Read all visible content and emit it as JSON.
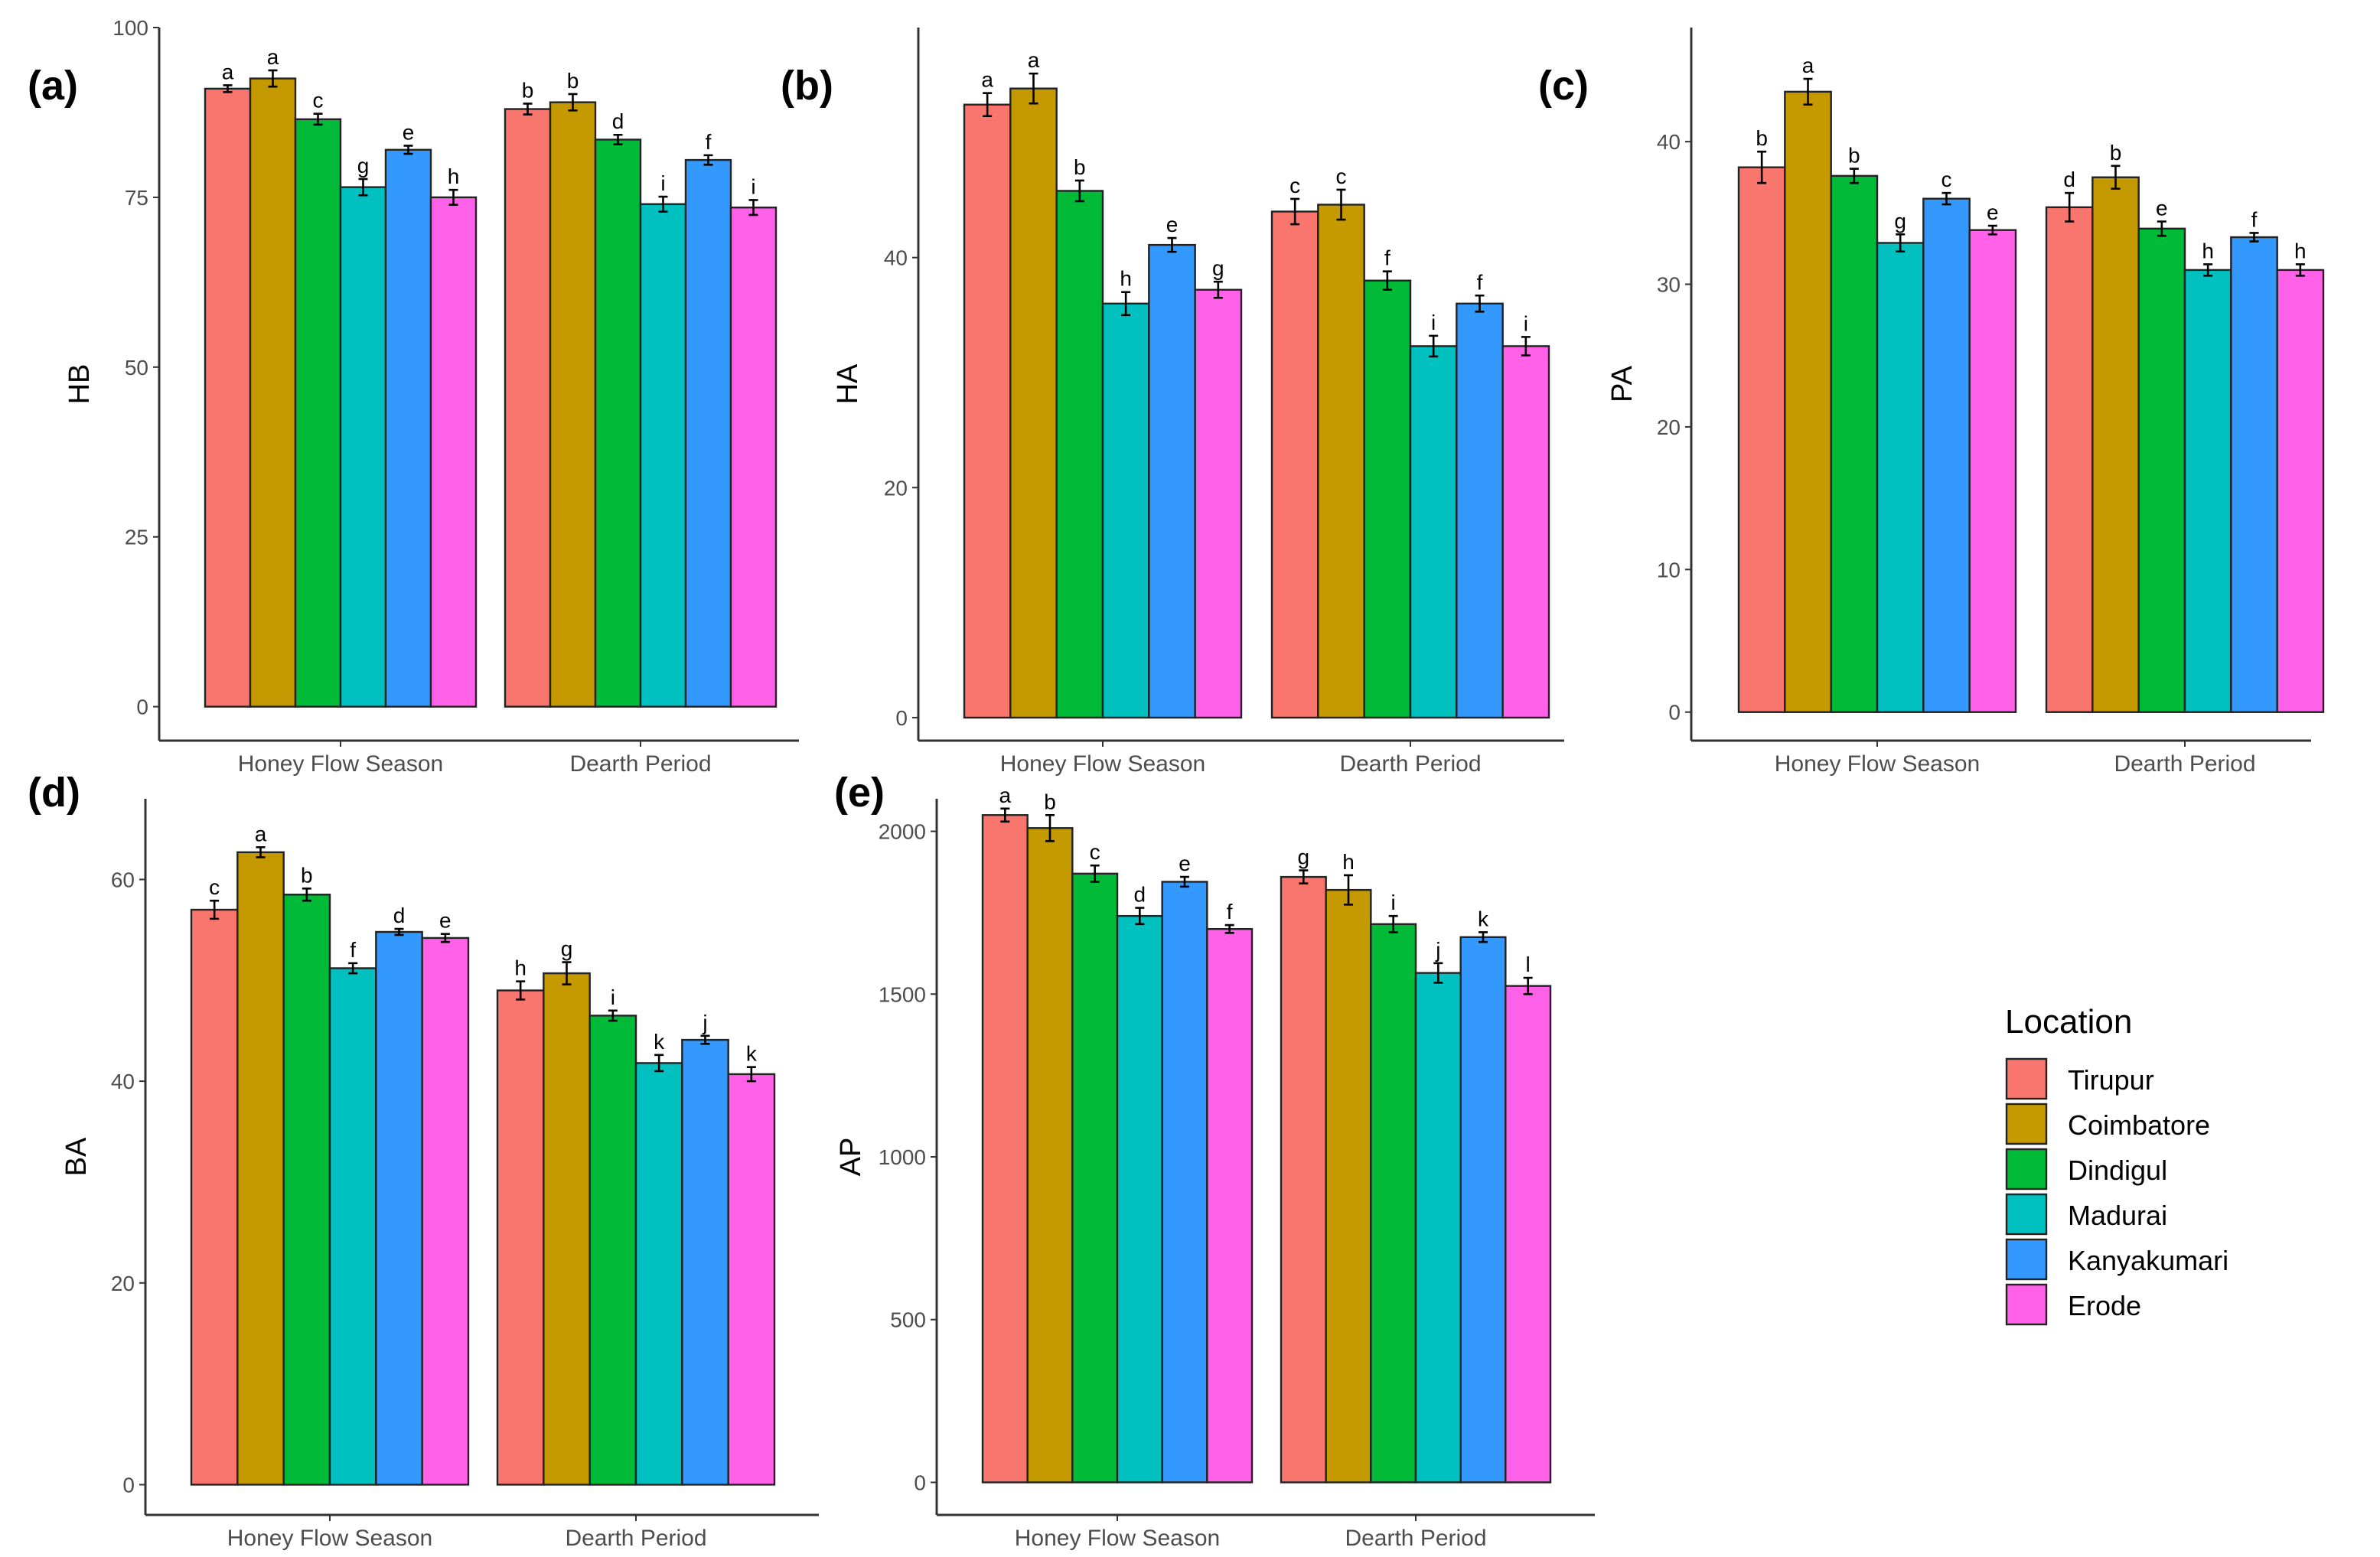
{
  "legend": {
    "title": "Location",
    "entries": [
      "Tirupur",
      "Coimbatore",
      "Dindigul",
      "Madurai",
      "Kanyakumari",
      "Erode"
    ],
    "colors": [
      "#F8766D",
      "#C49A00",
      "#00BA38",
      "#00C0C0",
      "#3399FF",
      "#FF61E8"
    ]
  },
  "chart_data": [
    {
      "panel": "(a)",
      "type": "bar",
      "ylabel": "HB",
      "categories": [
        "Honey Flow Season",
        "Dearth Period"
      ],
      "ylim": [
        -5,
        100
      ],
      "yticks": [
        0,
        25,
        50,
        75,
        100
      ],
      "series": [
        {
          "name": "Tirupur",
          "values": [
            91,
            88
          ],
          "errors": [
            0.5,
            0.8
          ],
          "letters": [
            "a",
            "b"
          ]
        },
        {
          "name": "Coimbatore",
          "values": [
            92.5,
            89
          ],
          "errors": [
            1.2,
            1.2
          ],
          "letters": [
            "a",
            "b"
          ]
        },
        {
          "name": "Dindigul",
          "values": [
            86.5,
            83.5
          ],
          "errors": [
            0.8,
            0.7
          ],
          "letters": [
            "c",
            "d"
          ]
        },
        {
          "name": "Madurai",
          "values": [
            76.5,
            74
          ],
          "errors": [
            1.2,
            1.1
          ],
          "letters": [
            "g",
            "i"
          ]
        },
        {
          "name": "Kanyakumari",
          "values": [
            82,
            80.5
          ],
          "errors": [
            0.6,
            0.7
          ],
          "letters": [
            "e",
            "f"
          ]
        },
        {
          "name": "Erode",
          "values": [
            75,
            73.5
          ],
          "errors": [
            1.1,
            1.1
          ],
          "letters": [
            "h",
            "i"
          ]
        }
      ]
    },
    {
      "panel": "(b)",
      "type": "bar",
      "ylabel": "HA",
      "categories": [
        "Honey Flow Season",
        "Dearth Period"
      ],
      "ylim": [
        -2,
        60
      ],
      "yticks": [
        0,
        20,
        40
      ],
      "series": [
        {
          "name": "Tirupur",
          "values": [
            53.3,
            44.0
          ],
          "errors": [
            1.0,
            1.1
          ],
          "letters": [
            "a",
            "c"
          ]
        },
        {
          "name": "Coimbatore",
          "values": [
            54.7,
            44.6
          ],
          "errors": [
            1.3,
            1.3
          ],
          "letters": [
            "a",
            "c"
          ]
        },
        {
          "name": "Dindigul",
          "values": [
            45.8,
            38.0
          ],
          "errors": [
            0.9,
            0.8
          ],
          "letters": [
            "b",
            "f"
          ]
        },
        {
          "name": "Madurai",
          "values": [
            36.0,
            32.3
          ],
          "errors": [
            1.0,
            0.9
          ],
          "letters": [
            "h",
            "i"
          ]
        },
        {
          "name": "Kanyakumari",
          "values": [
            41.1,
            36.0
          ],
          "errors": [
            0.6,
            0.7
          ],
          "letters": [
            "e",
            "f"
          ]
        },
        {
          "name": "Erode",
          "values": [
            37.2,
            32.3
          ],
          "errors": [
            0.7,
            0.8
          ],
          "letters": [
            "g",
            "i"
          ]
        }
      ]
    },
    {
      "panel": "(c)",
      "type": "bar",
      "ylabel": "PA",
      "categories": [
        "Honey Flow Season",
        "Dearth Period"
      ],
      "ylim": [
        -2,
        48
      ],
      "yticks": [
        0,
        10,
        20,
        30,
        40
      ],
      "series": [
        {
          "name": "Tirupur",
          "values": [
            38.2,
            35.4
          ],
          "errors": [
            1.1,
            1.0
          ],
          "letters": [
            "b",
            "d"
          ]
        },
        {
          "name": "Coimbatore",
          "values": [
            43.5,
            37.5
          ],
          "errors": [
            0.9,
            0.8
          ],
          "letters": [
            "a",
            "b"
          ]
        },
        {
          "name": "Dindigul",
          "values": [
            37.6,
            33.9
          ],
          "errors": [
            0.5,
            0.5
          ],
          "letters": [
            "b",
            "e"
          ]
        },
        {
          "name": "Madurai",
          "values": [
            32.9,
            31.0
          ],
          "errors": [
            0.6,
            0.4
          ],
          "letters": [
            "g",
            "h"
          ]
        },
        {
          "name": "Kanyakumari",
          "values": [
            36.0,
            33.3
          ],
          "errors": [
            0.4,
            0.3
          ],
          "letters": [
            "c",
            "f"
          ]
        },
        {
          "name": "Erode",
          "values": [
            33.8,
            31.0
          ],
          "errors": [
            0.3,
            0.4
          ],
          "letters": [
            "e",
            "h"
          ]
        }
      ]
    },
    {
      "panel": "(d)",
      "type": "bar",
      "ylabel": "BA",
      "categories": [
        "Honey Flow Season",
        "Dearth Period"
      ],
      "ylim": [
        -3,
        68
      ],
      "yticks": [
        0,
        20,
        40,
        60
      ],
      "series": [
        {
          "name": "Tirupur",
          "values": [
            57.0,
            49.0
          ],
          "errors": [
            0.9,
            0.9
          ],
          "letters": [
            "c",
            "h"
          ]
        },
        {
          "name": "Coimbatore",
          "values": [
            62.7,
            50.7
          ],
          "errors": [
            0.5,
            1.1
          ],
          "letters": [
            "a",
            "g"
          ]
        },
        {
          "name": "Dindigul",
          "values": [
            58.5,
            46.5
          ],
          "errors": [
            0.6,
            0.5
          ],
          "letters": [
            "b",
            "i"
          ]
        },
        {
          "name": "Madurai",
          "values": [
            51.2,
            41.8
          ],
          "errors": [
            0.5,
            0.8
          ],
          "letters": [
            "f",
            "k"
          ]
        },
        {
          "name": "Kanyakumari",
          "values": [
            54.8,
            44.1
          ],
          "errors": [
            0.3,
            0.4
          ],
          "letters": [
            "d",
            "j"
          ]
        },
        {
          "name": "Erode",
          "values": [
            54.2,
            40.7
          ],
          "errors": [
            0.4,
            0.7
          ],
          "letters": [
            "e",
            "k"
          ]
        }
      ]
    },
    {
      "panel": "(e)",
      "type": "bar",
      "ylabel": "AP",
      "categories": [
        "Honey Flow Season",
        "Dearth Period"
      ],
      "ylim": [
        -100,
        2100
      ],
      "yticks": [
        0,
        500,
        1000,
        1500,
        2000
      ],
      "series": [
        {
          "name": "Tirupur",
          "values": [
            2050,
            1860
          ],
          "errors": [
            20,
            20
          ],
          "letters": [
            "a",
            "g"
          ]
        },
        {
          "name": "Coimbatore",
          "values": [
            2010,
            1820
          ],
          "errors": [
            40,
            45
          ],
          "letters": [
            "b",
            "h"
          ]
        },
        {
          "name": "Dindigul",
          "values": [
            1870,
            1715
          ],
          "errors": [
            25,
            25
          ],
          "letters": [
            "c",
            "i"
          ]
        },
        {
          "name": "Madurai",
          "values": [
            1740,
            1565
          ],
          "errors": [
            25,
            30
          ],
          "letters": [
            "d",
            "j"
          ]
        },
        {
          "name": "Kanyakumari",
          "values": [
            1845,
            1675
          ],
          "errors": [
            15,
            15
          ],
          "letters": [
            "e",
            "k"
          ]
        },
        {
          "name": "Erode",
          "values": [
            1700,
            1525
          ],
          "errors": [
            12,
            25
          ],
          "letters": [
            "f",
            "l"
          ]
        }
      ]
    }
  ]
}
